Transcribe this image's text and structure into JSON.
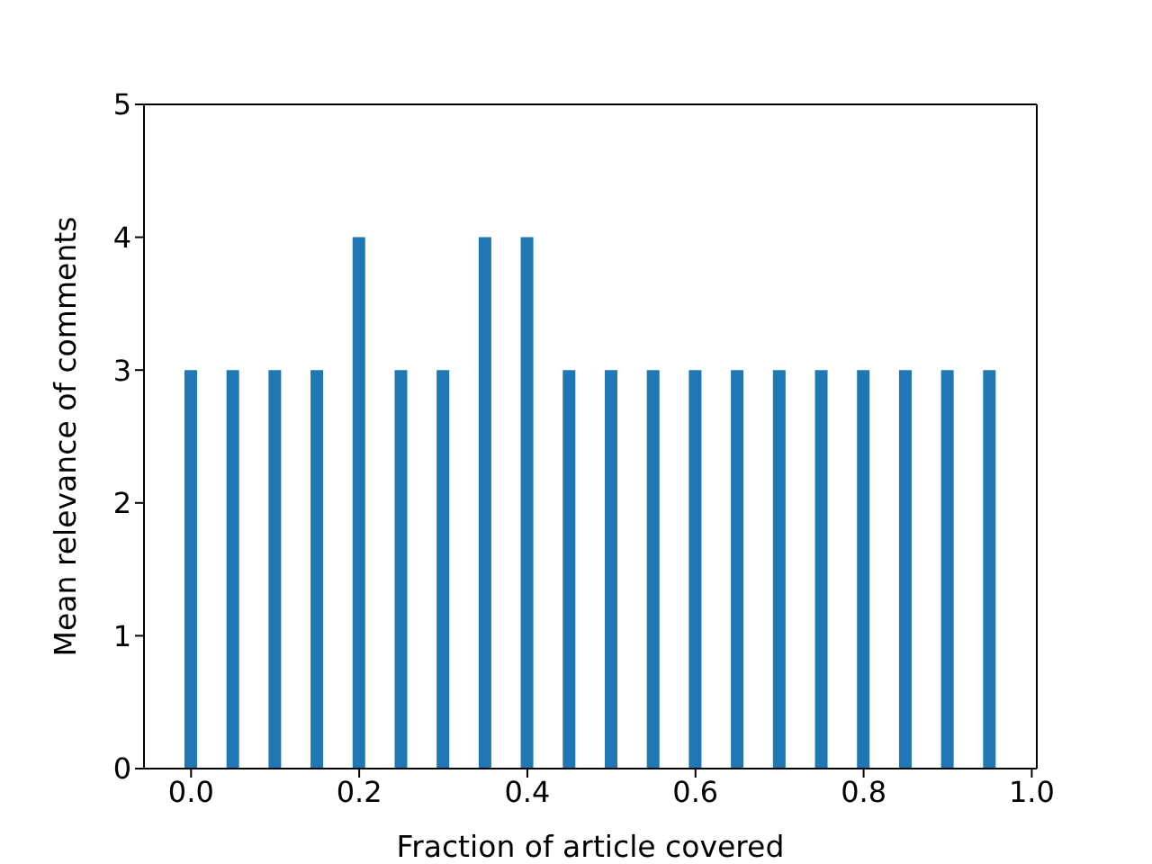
{
  "chart_data": {
    "type": "bar",
    "x": [
      0,
      0.05,
      0.1,
      0.15,
      0.2,
      0.25,
      0.3,
      0.35,
      0.4,
      0.45,
      0.5,
      0.55,
      0.6,
      0.65,
      0.7,
      0.75,
      0.8,
      0.85,
      0.9,
      0.95
    ],
    "values": [
      3,
      3,
      3,
      3,
      4,
      3,
      3,
      4,
      4,
      3,
      3,
      3,
      3,
      3,
      3,
      3,
      3,
      3,
      3,
      3
    ],
    "color": "#1f77b4",
    "xlabel": "Fraction of article covered",
    "ylabel": "Mean relevance of comments",
    "xlim": [
      -0.056,
      1.006
    ],
    "xticks": [
      {
        "value": 0,
        "label": "0.0"
      },
      0.2,
      0.4,
      0.6,
      0.8,
      {
        "value": 1,
        "label": "1.0"
      }
    ],
    "ylim": [
      0,
      5
    ],
    "yticks": [
      0,
      1,
      2,
      3,
      4,
      5
    ]
  }
}
